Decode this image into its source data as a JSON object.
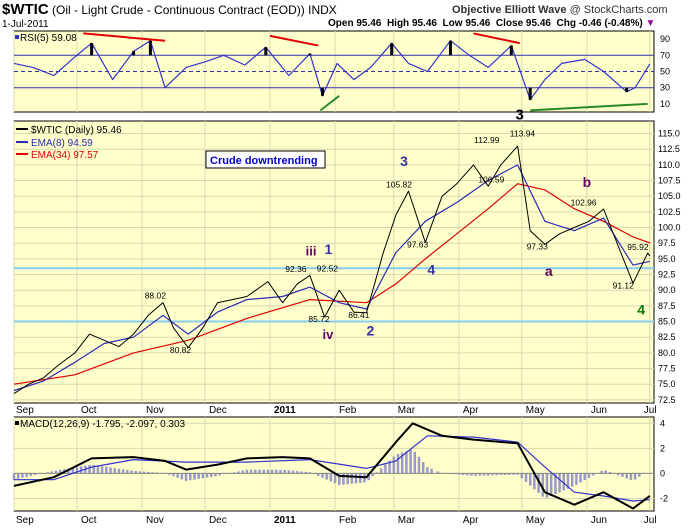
{
  "header": {
    "symbol": "$WTIC",
    "name": "(Oil - Light Crude - Continuous Contract (EOD))",
    "exchange": "INDX",
    "date": "1-Jul-2011",
    "open_label": "Open",
    "open": "95.46",
    "high_label": "High",
    "high": "95.46",
    "low_label": "Low",
    "low": "95.46",
    "close_label": "Close",
    "close": "95.46",
    "chg_label": "Chg",
    "chg": "-0.46 (-0.48%)",
    "watermark": "Objective Elliott Wave",
    "source": "@ StockCharts.com"
  },
  "colors": {
    "panel_bg": "#ffffcc",
    "price": "#000000",
    "ema8": "#2b2bb8",
    "ema34": "#e00000",
    "rsi": "#3333cc",
    "horizontal_line": "#88ccee",
    "trendline_red": "#e00000",
    "trendline_green": "#2a8a2a",
    "wave_navy": "#333399",
    "wave_purple": "#660066",
    "wave_green": "#007700",
    "macd_hist": "#9999cc"
  },
  "legend": {
    "price": "$WTIC (Daily) 95.46",
    "ema8": "EMA(8) 94.59",
    "ema34": "EMA(34) 97.57"
  },
  "annotation_box": "Crude downtrending",
  "chart_data": [
    {
      "type": "line",
      "panel": "rsi",
      "title": "RSI(5) 59.08",
      "y_ticks": [
        10,
        30,
        50,
        70,
        90
      ],
      "ylim": [
        0,
        100
      ],
      "levels": [
        30,
        50,
        70
      ],
      "x": [
        "2010-09-01",
        "2010-09-10",
        "2010-09-20",
        "2010-09-30",
        "2010-10-08",
        "2010-10-18",
        "2010-10-28",
        "2010-11-05",
        "2010-11-12",
        "2010-11-22",
        "2010-12-01",
        "2010-12-10",
        "2010-12-20",
        "2010-12-30",
        "2011-01-10",
        "2011-01-20",
        "2011-01-26",
        "2011-02-02",
        "2011-02-10",
        "2011-02-18",
        "2011-02-28",
        "2011-03-08",
        "2011-03-17",
        "2011-03-28",
        "2011-04-06",
        "2011-04-15",
        "2011-04-26",
        "2011-05-05",
        "2011-05-12",
        "2011-05-20",
        "2011-05-31",
        "2011-06-09",
        "2011-06-20",
        "2011-06-24",
        "2011-07-01"
      ],
      "values": [
        60,
        55,
        45,
        68,
        85,
        40,
        75,
        88,
        30,
        55,
        62,
        70,
        58,
        80,
        45,
        72,
        20,
        60,
        40,
        55,
        85,
        60,
        50,
        88,
        70,
        55,
        82,
        15,
        40,
        60,
        65,
        50,
        25,
        30,
        59.08
      ]
    },
    {
      "type": "line",
      "panel": "price",
      "y_ticks": [
        72.5,
        75.0,
        77.5,
        80.0,
        82.5,
        85.0,
        87.5,
        90.0,
        92.5,
        95.0,
        97.5,
        100.0,
        102.5,
        105.0,
        107.5,
        110.0,
        112.5,
        115.0
      ],
      "ylim": [
        72,
        117
      ],
      "x_ticks": [
        "Sep",
        "Oct",
        "Nov",
        "Dec",
        "2011",
        "Feb",
        "Mar",
        "Apr",
        "May",
        "Jun",
        "Jul"
      ],
      "horizontal_lines": [
        93.5,
        85.0
      ],
      "series": [
        {
          "name": "$WTIC (Daily) 95.46",
          "x": [
            "2010-09-01",
            "2010-09-08",
            "2010-09-15",
            "2010-09-22",
            "2010-09-30",
            "2010-10-07",
            "2010-10-14",
            "2010-10-21",
            "2010-10-28",
            "2010-11-04",
            "2010-11-11",
            "2010-11-16",
            "2010-11-23",
            "2010-11-30",
            "2010-12-07",
            "2010-12-14",
            "2010-12-21",
            "2010-12-31",
            "2011-01-07",
            "2011-01-14",
            "2011-01-20",
            "2011-01-27",
            "2011-02-03",
            "2011-02-10",
            "2011-02-16",
            "2011-02-24",
            "2011-03-02",
            "2011-03-08",
            "2011-03-16",
            "2011-03-24",
            "2011-03-31",
            "2011-04-08",
            "2011-04-15",
            "2011-04-21",
            "2011-04-29",
            "2011-05-05",
            "2011-05-12",
            "2011-05-19",
            "2011-05-26",
            "2011-06-02",
            "2011-06-09",
            "2011-06-16",
            "2011-06-23",
            "2011-06-30",
            "2011-07-01"
          ],
          "values": [
            73.5,
            75,
            76,
            78,
            80,
            83,
            82,
            81,
            83,
            86,
            88.02,
            84,
            80.82,
            84,
            88,
            88.5,
            89,
            91.38,
            88,
            91,
            92.36,
            85.72,
            90,
            86.5,
            86.41,
            96,
            102,
            105.82,
            97.63,
            105,
            107,
            110,
            106.59,
            110,
            112.99,
            99.5,
            97.33,
            99,
            100,
            101,
            102.96,
            97,
            91.12,
            95.92,
            95.46
          ]
        },
        {
          "name": "EMA(8) 94.59",
          "x": [
            "2010-09-01",
            "2010-09-15",
            "2010-09-30",
            "2010-10-14",
            "2010-10-28",
            "2010-11-11",
            "2010-11-23",
            "2010-12-07",
            "2010-12-21",
            "2011-01-07",
            "2011-01-20",
            "2011-02-03",
            "2011-02-16",
            "2011-03-02",
            "2011-03-16",
            "2011-03-31",
            "2011-04-15",
            "2011-04-29",
            "2011-05-12",
            "2011-05-26",
            "2011-06-09",
            "2011-06-23",
            "2011-07-01"
          ],
          "values": [
            74,
            75.5,
            78.5,
            81.5,
            82.5,
            86,
            83,
            86.5,
            88.5,
            89,
            90.5,
            88,
            87,
            96,
            101,
            104,
            107.5,
            110,
            101,
            99.5,
            101.5,
            94,
            94.59
          ]
        },
        {
          "name": "EMA(34) 97.57",
          "x": [
            "2010-09-01",
            "2010-09-30",
            "2010-10-28",
            "2010-11-23",
            "2010-12-21",
            "2011-01-20",
            "2011-02-16",
            "2011-03-02",
            "2011-03-16",
            "2011-03-31",
            "2011-04-15",
            "2011-04-29",
            "2011-05-12",
            "2011-05-26",
            "2011-06-09",
            "2011-06-23",
            "2011-07-01"
          ],
          "values": [
            75,
            76.5,
            80,
            82,
            85.5,
            88.5,
            88,
            91,
            95,
            99,
            103,
            107,
            106,
            103,
            101,
            98.5,
            97.57
          ]
        }
      ]
    },
    {
      "type": "line",
      "panel": "macd",
      "title": "MACD(12,26,9) -1.795, -2.097, 0.303",
      "y_ticks": [
        -2,
        0,
        2,
        4
      ],
      "ylim": [
        -3,
        4.5
      ],
      "series": [
        {
          "name": "MACD",
          "x": [
            "2010-09-01",
            "2010-09-20",
            "2010-10-08",
            "2010-10-28",
            "2010-11-12",
            "2010-11-22",
            "2010-12-07",
            "2010-12-21",
            "2011-01-07",
            "2011-01-20",
            "2011-02-03",
            "2011-02-16",
            "2011-03-02",
            "2011-03-10",
            "2011-03-24",
            "2011-04-08",
            "2011-04-29",
            "2011-05-12",
            "2011-05-26",
            "2011-06-09",
            "2011-06-23",
            "2011-07-01"
          ],
          "values": [
            -1,
            -0.3,
            1.2,
            1.3,
            1.0,
            0.3,
            0.7,
            1.2,
            1.3,
            1.2,
            -0.2,
            -0.3,
            2.5,
            4.0,
            3.0,
            2.7,
            2.4,
            -1.5,
            -2.5,
            -1.5,
            -2.8,
            -1.795
          ]
        },
        {
          "name": "Signal",
          "x": [
            "2010-09-01",
            "2010-09-20",
            "2010-10-08",
            "2010-10-28",
            "2010-11-22",
            "2010-12-21",
            "2011-01-20",
            "2011-02-16",
            "2011-03-02",
            "2011-03-17",
            "2011-04-08",
            "2011-04-29",
            "2011-05-12",
            "2011-05-26",
            "2011-06-09",
            "2011-06-23",
            "2011-07-01"
          ],
          "values": [
            -0.5,
            -0.5,
            0.5,
            1.1,
            0.9,
            0.9,
            1.1,
            0.4,
            1.0,
            3.0,
            2.9,
            2.5,
            0.5,
            -1.5,
            -1.8,
            -2.2,
            -2.097
          ]
        }
      ],
      "histogram_last": 0.303
    }
  ],
  "wave_labels": [
    {
      "text": "iii"
    },
    {
      "text": "iv"
    },
    {
      "text": "1"
    },
    {
      "text": "2"
    },
    {
      "text": "3"
    },
    {
      "text": "4"
    },
    {
      "text": "3"
    },
    {
      "text": "a"
    },
    {
      "text": "b"
    },
    {
      "text": "4"
    }
  ],
  "price_labels": [
    "88.02",
    "80.82",
    "92.36",
    "85.72",
    "92.52",
    "86.41",
    "105.82",
    "97.63",
    "112.99",
    "106.59",
    "113.94",
    "97.33",
    "102.96",
    "95.92",
    "91.12"
  ],
  "right_axis": {
    "price_ticks": [
      "115.0",
      "112.5",
      "110.0",
      "107.5",
      "105.0",
      "102.5",
      "100.0",
      "97.5",
      "95.0",
      "92.5",
      "90.0",
      "87.5",
      "85.0",
      "82.5",
      "80.0",
      "77.5",
      "75.0",
      "72.5"
    ],
    "rsi_ticks": [
      "90",
      "70",
      "50",
      "30",
      "10"
    ],
    "macd_ticks": [
      "4",
      "2",
      "0",
      "-2"
    ]
  }
}
